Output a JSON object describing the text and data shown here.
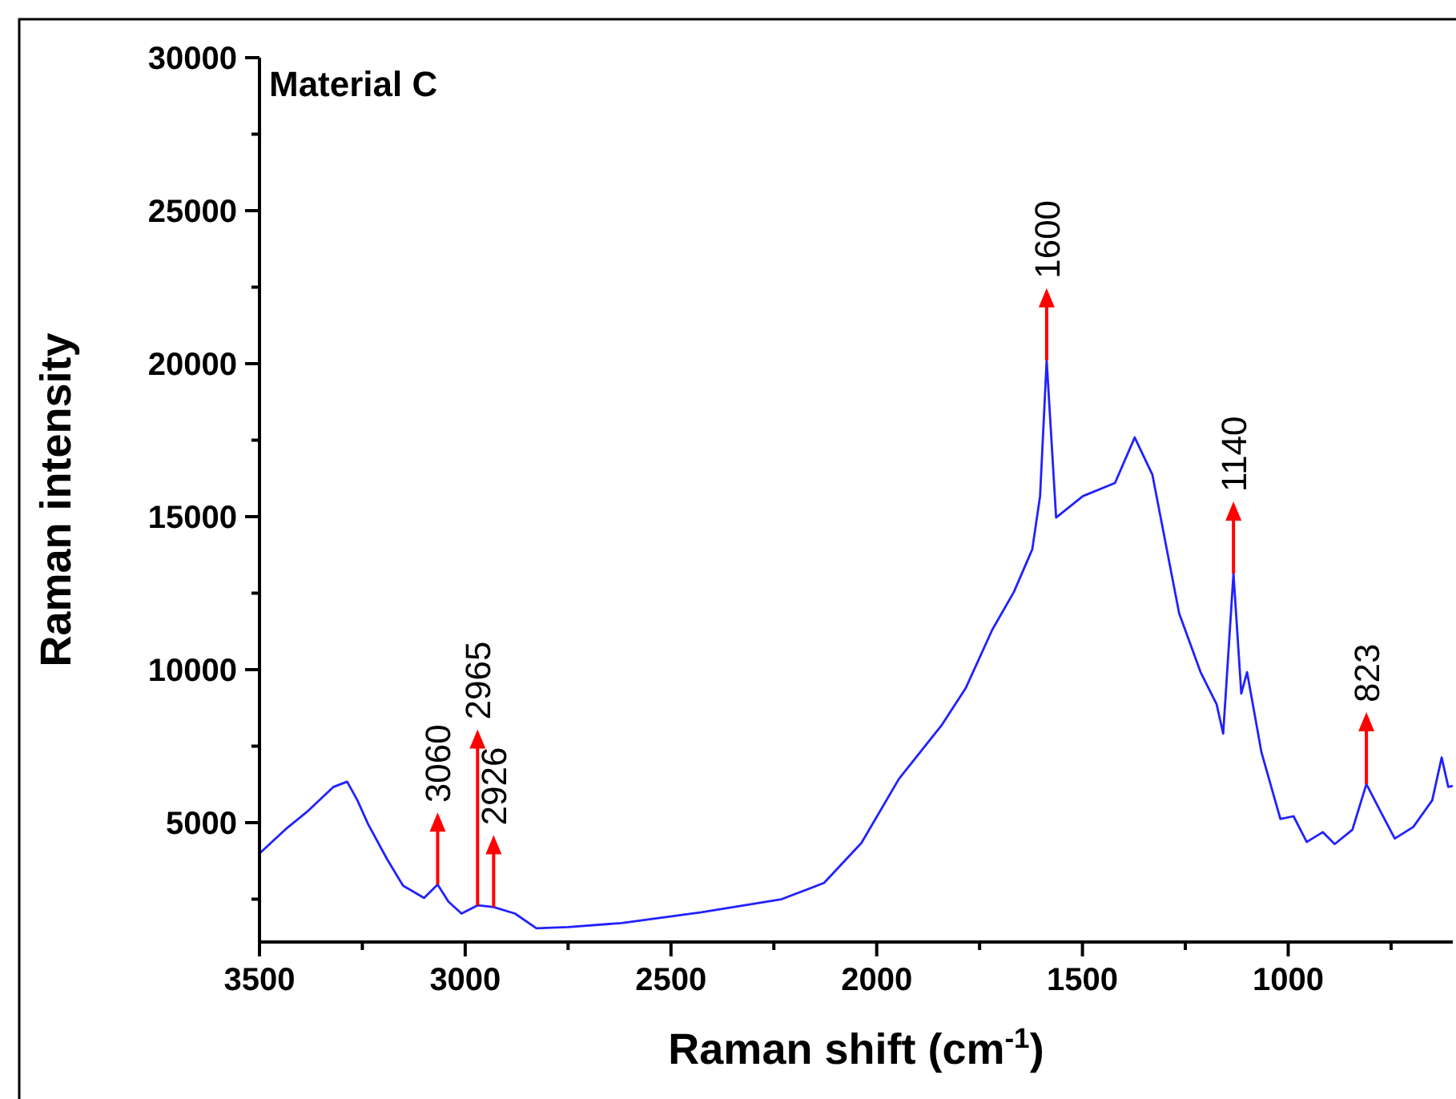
{
  "chart_data": {
    "type": "line",
    "title": "Material C",
    "xlabel": "Raman shift (cm$^{-1}$)",
    "ylabel": "Raman intensity",
    "x": [
      3500,
      3437,
      3385,
      3320,
      3287,
      3262,
      3236,
      3190,
      3151,
      3100,
      3067,
      3041,
      3009,
      2970,
      2931,
      2879,
      2827,
      2750,
      2620,
      2426,
      2231,
      2128,
      2037,
      1946,
      1843,
      1784,
      1719,
      1667,
      1622,
      1603,
      1587,
      1564,
      1499,
      1421,
      1373,
      1330,
      1265,
      1213,
      1174,
      1158,
      1133,
      1114,
      1100,
      1065,
      1019,
      987,
      955,
      916,
      887,
      844,
      810,
      773,
      741,
      696,
      650,
      627,
      611,
      600
    ],
    "series": [
      {
        "color": "#2121ff",
        "values": [
          3990,
          4780,
          5350,
          6170,
          6340,
          5730,
          4950,
          3810,
          2940,
          2540,
          2980,
          2420,
          2030,
          2300,
          2240,
          2030,
          1550,
          1585,
          1720,
          2070,
          2500,
          3030,
          4340,
          6430,
          8170,
          9390,
          11310,
          12530,
          13930,
          15670,
          20110,
          14970,
          15670,
          16100,
          17590,
          16370,
          11840,
          9920,
          8870,
          7910,
          13140,
          9220,
          9920,
          7300,
          5120,
          5210,
          4370,
          4690,
          4300,
          4770,
          6260,
          5300,
          4480,
          4860,
          5730,
          7130,
          6170,
          6200
        ]
      }
    ],
    "xlim": [
      3500,
      600
    ],
    "ylim": [
      1100,
      30000
    ],
    "xticks": [
      3500,
      {
        "value": 3250,
        "label": null
      },
      3000,
      {
        "value": 2750,
        "label": null
      },
      2500,
      {
        "value": 2250,
        "label": null
      },
      2000,
      {
        "value": 1750,
        "label": null
      },
      1500,
      {
        "value": 1250,
        "label": null
      },
      1000,
      {
        "value": 750,
        "label": null
      }
    ],
    "yticks": [
      {
        "value": 2500,
        "label": null
      },
      5000,
      {
        "value": 7500,
        "label": null
      },
      10000,
      {
        "value": 12500,
        "label": null
      },
      15000,
      {
        "value": 17500,
        "label": null
      },
      20000,
      {
        "value": 22500,
        "label": null
      },
      25000,
      {
        "value": 27500,
        "label": null
      },
      30000
    ],
    "grid": false,
    "marker": "none",
    "line_style": "solid",
    "annotations": [
      {
        "text": "3060",
        "x": 3067,
        "y": 2980
      },
      {
        "text": "2926",
        "x": 2931,
        "y": 2240
      },
      {
        "text": "2965",
        "x": 2970,
        "y": 2300
      },
      {
        "text": "1600",
        "x": 1587,
        "y": 20110
      },
      {
        "text": "1140",
        "x": 1133,
        "y": 13140
      },
      {
        "text": "823",
        "x": 810,
        "y": 6260
      }
    ]
  }
}
